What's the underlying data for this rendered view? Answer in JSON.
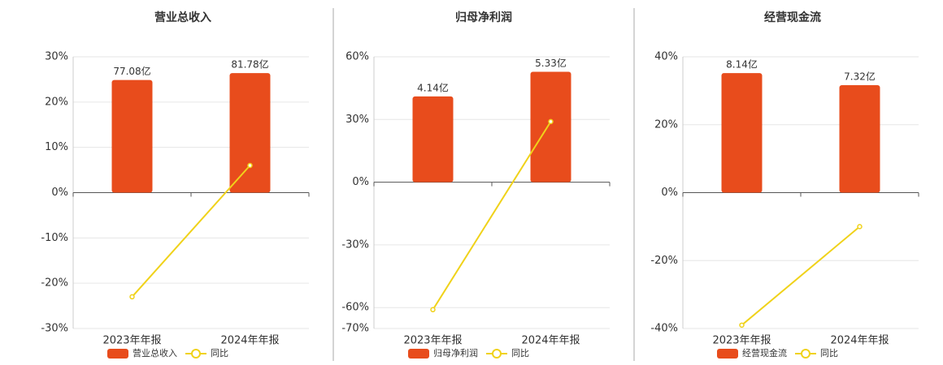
{
  "chart_data": [
    {
      "type": "bar",
      "title": "营业总收入",
      "categories": [
        "2023年年报",
        "2024年年报"
      ],
      "series": [
        {
          "name": "营业总收入",
          "color": "#e84c1c",
          "values": [
            77.08,
            81.78
          ],
          "value_labels": [
            "77.08亿",
            "81.78亿"
          ]
        },
        {
          "name": "同比",
          "color": "#f0d21a",
          "values": [
            -23,
            6
          ]
        }
      ],
      "ylim": [
        -30,
        30
      ],
      "yticks": [
        {
          "value": -30,
          "label": "-30%"
        },
        {
          "value": -20,
          "label": "-20%"
        },
        {
          "value": -10,
          "label": "-10%"
        },
        {
          "value": 0,
          "label": "0%"
        },
        {
          "value": 10,
          "label": "10%"
        },
        {
          "value": 20,
          "label": "20%"
        },
        {
          "value": 30,
          "label": "30%"
        }
      ],
      "grid": true
    },
    {
      "type": "bar",
      "title": "归母净利润",
      "categories": [
        "2023年年报",
        "2024年年报"
      ],
      "series": [
        {
          "name": "归母净利润",
          "color": "#e84c1c",
          "values": [
            4.14,
            5.33
          ],
          "value_labels": [
            "4.14亿",
            "5.33亿"
          ]
        },
        {
          "name": "同比",
          "color": "#f0d21a",
          "values": [
            -61,
            29
          ]
        }
      ],
      "ylim": [
        -70,
        60
      ],
      "yticks": [
        {
          "value": -70,
          "label": "-70%"
        },
        {
          "value": -60,
          "label": "-60%"
        },
        {
          "value": -30,
          "label": "-30%"
        },
        {
          "value": 0,
          "label": "0%"
        },
        {
          "value": 30,
          "label": "30%"
        },
        {
          "value": 60,
          "label": "60%"
        }
      ],
      "grid": true
    },
    {
      "type": "bar",
      "title": "经营现金流",
      "categories": [
        "2023年年报",
        "2024年年报"
      ],
      "series": [
        {
          "name": "经营现金流",
          "color": "#e84c1c",
          "values": [
            8.14,
            7.32
          ],
          "value_labels": [
            "8.14亿",
            "7.32亿"
          ]
        },
        {
          "name": "同比",
          "color": "#f0d21a",
          "values": [
            -39,
            -10
          ]
        }
      ],
      "ylim": [
        -40,
        40
      ],
      "yticks": [
        {
          "value": -40,
          "label": "-40%"
        },
        {
          "value": -20,
          "label": "-20%"
        },
        {
          "value": 0,
          "label": "0%"
        },
        {
          "value": 20,
          "label": "20%"
        },
        {
          "value": 40,
          "label": "40%"
        }
      ],
      "grid": true
    }
  ]
}
